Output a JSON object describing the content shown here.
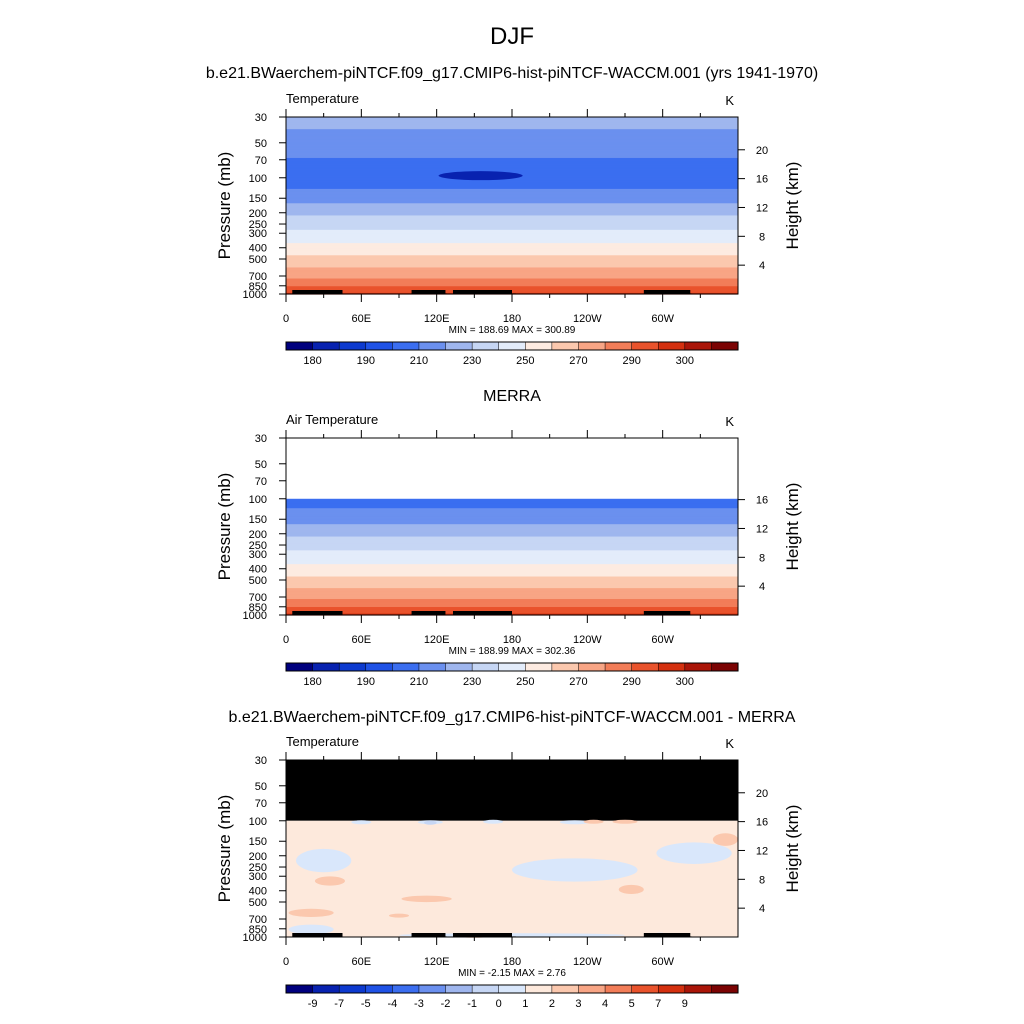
{
  "figure": {
    "title": "DJF",
    "case_title": "b.e21.BWaerchem-piNTCF.f09_g17.CMIP6-hist-piNTCF-WACCM.001 (yrs 1941-1970)",
    "diff_title": "b.e21.BWaerchem-piNTCF.f09_g17.CMIP6-hist-piNTCF-WACCM.001 - MERRA"
  },
  "colors": {
    "abs_palette": [
      "#00007e",
      "#0822b0",
      "#0d3acf",
      "#1f52e6",
      "#3b6ef0",
      "#6b90ef",
      "#9fb6ee",
      "#c6d6f4",
      "#e3ecfa",
      "#fdebe1",
      "#fbc8ae",
      "#f8a585",
      "#f27d58",
      "#e9532c",
      "#d4300f",
      "#aa1508",
      "#7b0303"
    ],
    "diff_palette": [
      "#00007e",
      "#0822b0",
      "#0d3acf",
      "#1f52e6",
      "#3b6ef0",
      "#6b90ef",
      "#9fb6ee",
      "#c6d6f4",
      "#d9e7fb",
      "#fde9dc",
      "#fbc8ae",
      "#f8a585",
      "#f27d58",
      "#e9532c",
      "#d4300f",
      "#aa1508",
      "#7b0303"
    ],
    "missing": "#000000"
  },
  "chart_data": [
    {
      "type": "heatmap",
      "name": "model-panel",
      "subtitle": "",
      "left_label": "Temperature",
      "right_label": "K",
      "ylabel": "Pressure (mb)",
      "ylabel_right": "Height (km)",
      "xlabel": "",
      "x_ticks": [
        "0",
        "60E",
        "120E",
        "180",
        "120W",
        "60W"
      ],
      "x_tick_values": [
        0,
        60,
        120,
        180,
        240,
        300
      ],
      "xlim": [
        0,
        360
      ],
      "y_ticks": [
        30,
        50,
        70,
        100,
        150,
        200,
        250,
        300,
        400,
        500,
        700,
        850,
        1000
      ],
      "ylim": [
        30,
        1000
      ],
      "height_ticks": [
        4,
        8,
        12,
        16,
        20
      ],
      "stats": "MIN = 188.69  MAX = 300.89",
      "colorbar_labels": [
        "180",
        "190",
        "210",
        "230",
        "250",
        "270",
        "290",
        "300"
      ],
      "colorbar_levels": [
        175,
        180,
        185,
        190,
        200,
        210,
        220,
        230,
        240,
        250,
        260,
        270,
        280,
        290,
        295,
        300
      ],
      "data_top_hpa": 30,
      "profile": [
        [
          30,
          212
        ],
        [
          50,
          207
        ],
        [
          60,
          203
        ],
        [
          70,
          199
        ],
        [
          80,
          196
        ],
        [
          100,
          194
        ],
        [
          125,
          200
        ],
        [
          150,
          206
        ],
        [
          175,
          212
        ],
        [
          200,
          218
        ],
        [
          250,
          226
        ],
        [
          300,
          233
        ],
        [
          350,
          238
        ],
        [
          400,
          244
        ],
        [
          500,
          253
        ],
        [
          600,
          261
        ],
        [
          700,
          268
        ],
        [
          800,
          275
        ],
        [
          850,
          279
        ],
        [
          925,
          285
        ],
        [
          1000,
          291
        ]
      ],
      "cold_blob": {
        "lon": 155,
        "p": 95,
        "value": 188.7
      },
      "topography": [
        [
          10,
          1000,
          985
        ],
        [
          28,
          1000,
          960
        ],
        [
          35,
          1000,
          982
        ],
        [
          40,
          1000,
          988
        ],
        [
          103,
          1000,
          983
        ],
        [
          114,
          1000,
          983
        ],
        [
          125,
          1000,
          988
        ],
        [
          180,
          1000,
          988
        ],
        [
          295,
          1000,
          985
        ],
        [
          320,
          1000,
          988
        ]
      ]
    },
    {
      "type": "heatmap",
      "name": "merra-panel",
      "subtitle": "MERRA",
      "left_label": "Air Temperature",
      "right_label": "K",
      "ylabel": "Pressure (mb)",
      "ylabel_right": "Height (km)",
      "xlabel": "",
      "x_ticks": [
        "0",
        "60E",
        "120E",
        "180",
        "120W",
        "60W"
      ],
      "x_tick_values": [
        0,
        60,
        120,
        180,
        240,
        300
      ],
      "xlim": [
        0,
        360
      ],
      "y_ticks": [
        30,
        50,
        70,
        100,
        150,
        200,
        250,
        300,
        400,
        500,
        700,
        850,
        1000
      ],
      "ylim": [
        30,
        1000
      ],
      "height_ticks": [
        4,
        8,
        12,
        16
      ],
      "stats": "MIN = 188.99  MAX = 302.36",
      "colorbar_labels": [
        "180",
        "190",
        "210",
        "230",
        "250",
        "270",
        "290",
        "300"
      ],
      "colorbar_levels": [
        175,
        180,
        185,
        190,
        200,
        210,
        220,
        230,
        240,
        250,
        260,
        270,
        280,
        290,
        295,
        300
      ],
      "data_top_hpa": 100,
      "profile": [
        [
          100,
          196
        ],
        [
          125,
          201
        ],
        [
          150,
          206
        ],
        [
          175,
          212
        ],
        [
          200,
          218
        ],
        [
          250,
          226
        ],
        [
          300,
          233
        ],
        [
          350,
          238
        ],
        [
          400,
          244
        ],
        [
          500,
          253
        ],
        [
          600,
          261
        ],
        [
          700,
          268
        ],
        [
          800,
          275
        ],
        [
          850,
          280
        ],
        [
          925,
          286
        ],
        [
          1000,
          292
        ]
      ],
      "topography": [
        [
          20,
          1000,
          992
        ],
        [
          28,
          1000,
          985
        ],
        [
          35,
          1000,
          993
        ]
      ]
    },
    {
      "type": "heatmap",
      "name": "difference-panel",
      "subtitle": "",
      "left_label": "Temperature",
      "right_label": "K",
      "ylabel": "Pressure (mb)",
      "ylabel_right": "Height (km)",
      "xlabel": "",
      "x_ticks": [
        "0",
        "60E",
        "120E",
        "180",
        "120W",
        "60W"
      ],
      "x_tick_values": [
        0,
        60,
        120,
        180,
        240,
        300
      ],
      "xlim": [
        0,
        360
      ],
      "y_ticks": [
        30,
        50,
        70,
        100,
        150,
        200,
        250,
        300,
        400,
        500,
        700,
        850,
        1000
      ],
      "ylim": [
        30,
        1000
      ],
      "height_ticks": [
        4,
        8,
        12,
        16,
        20
      ],
      "stats": "MIN =  -2.15  MAX =   2.76",
      "colorbar_labels": [
        "-9",
        "-7",
        "-5",
        "-4",
        "-3",
        "-2",
        "-1",
        "0",
        "1",
        "2",
        "3",
        "4",
        "5",
        "7",
        "9"
      ],
      "colorbar_levels": [
        -10,
        -9,
        -8,
        -7,
        -5,
        -4,
        -3,
        -2,
        -1,
        0,
        1,
        2,
        3,
        4,
        5,
        7,
        9
      ],
      "missing_above_hpa": 100,
      "background_bin": "0 to 1",
      "anomalies": [
        {
          "lon": 60,
          "p": 103,
          "rlon": 8,
          "rp": 4,
          "bin": "-1 to 0"
        },
        {
          "lon": 115,
          "p": 103,
          "rlon": 10,
          "rp": 4,
          "bin": "-1 to 0"
        },
        {
          "lon": 115,
          "p": 104,
          "rlon": 5,
          "rp": 2,
          "bin": "-2 to -1"
        },
        {
          "lon": 165,
          "p": 102,
          "rlon": 8,
          "rp": 3,
          "bin": "-1 to 0"
        },
        {
          "lon": 230,
          "p": 103,
          "rlon": 12,
          "rp": 4,
          "bin": "-1 to 0"
        },
        {
          "lon": 245,
          "p": 102,
          "rlon": 8,
          "rp": 3,
          "bin": "1 to 2"
        },
        {
          "lon": 270,
          "p": 102,
          "rlon": 10,
          "rp": 3,
          "bin": "1 to 2"
        },
        {
          "lon": 350,
          "p": 145,
          "rlon": 10,
          "rp": 18,
          "bin": "1 to 2"
        },
        {
          "lon": 325,
          "p": 190,
          "rlon": 30,
          "rp": 40,
          "bin": "-1 to 0"
        },
        {
          "lon": 30,
          "p": 220,
          "rlon": 22,
          "rp": 50,
          "bin": "-1 to 0"
        },
        {
          "lon": 230,
          "p": 265,
          "rlon": 50,
          "rp": 60,
          "bin": "-1 to 0"
        },
        {
          "lon": 35,
          "p": 330,
          "rlon": 12,
          "rp": 30,
          "bin": "1 to 2"
        },
        {
          "lon": 275,
          "p": 390,
          "rlon": 10,
          "rp": 35,
          "bin": "1 to 2"
        },
        {
          "lon": 112,
          "p": 470,
          "rlon": 20,
          "rp": 30,
          "bin": "1 to 2"
        },
        {
          "lon": 20,
          "p": 620,
          "rlon": 18,
          "rp": 50,
          "bin": "1 to 2"
        },
        {
          "lon": 90,
          "p": 655,
          "rlon": 8,
          "rp": 10,
          "bin": "1 to 2"
        },
        {
          "lon": 20,
          "p": 860,
          "rlon": 18,
          "rp": 80,
          "bin": "-1 to 0"
        },
        {
          "lon": 180,
          "p": 965,
          "rlon": 90,
          "rp": 25,
          "bin": "-1 to 0"
        },
        {
          "lon": 150,
          "p": 975,
          "rlon": 15,
          "rp": 15,
          "bin": "1 to 2"
        },
        {
          "lon": 298,
          "p": 960,
          "rlon": 5,
          "rp": 45,
          "bin": "-1 to 0"
        }
      ],
      "topography": [
        [
          10,
          1000,
          985
        ],
        [
          28,
          1000,
          960
        ],
        [
          35,
          1000,
          982
        ],
        [
          40,
          1000,
          988
        ],
        [
          103,
          1000,
          983
        ],
        [
          114,
          1000,
          983
        ],
        [
          125,
          1000,
          988
        ],
        [
          180,
          1000,
          988
        ],
        [
          295,
          1000,
          985
        ],
        [
          320,
          1000,
          988
        ]
      ]
    }
  ]
}
